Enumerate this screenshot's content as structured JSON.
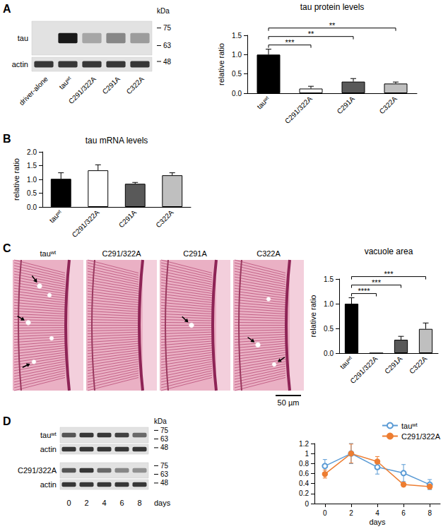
{
  "chart_data": [
    {
      "type": "blot",
      "panel": "A",
      "unit": "kDa",
      "markers": [
        75,
        63,
        48
      ],
      "blocks": [
        [
          "tau",
          "actin"
        ]
      ],
      "lanes": [
        "driver-alone",
        "tauʷᵗ",
        "C291/322A",
        "C291A",
        "C322A"
      ]
    },
    {
      "type": "bar",
      "title": "tau protein levels",
      "y_label": "relative ratio",
      "categories": [
        "tauʷᵗ",
        "C291/322A",
        "C291A",
        "C322A"
      ],
      "values": [
        1.0,
        0.12,
        0.3,
        0.25
      ],
      "errors": [
        0.14,
        0.06,
        0.08,
        0.04
      ],
      "colors": [
        "#000000",
        "#ffffff",
        "#595959",
        "#bfbfbf"
      ],
      "ylim": [
        0,
        1.5
      ],
      "yticks": [
        {
          "value": 0,
          "label": "0.0"
        },
        {
          "value": 0.5,
          "label": "0.5"
        },
        {
          "value": 1,
          "label": "1.0"
        },
        {
          "value": 1.5,
          "label": "1.5"
        }
      ],
      "significance": [
        {
          "from": "tauʷᵗ",
          "to": "C291/322A",
          "label": "***"
        },
        {
          "from": "tauʷᵗ",
          "to": "C291A",
          "label": "**"
        },
        {
          "from": "tauʷᵗ",
          "to": "C322A",
          "label": "**"
        }
      ]
    },
    {
      "type": "bar",
      "panel": "B",
      "title": "tau mRNA levels",
      "y_label": "relative ratio",
      "categories": [
        "tauʷᵗ",
        "C291/322A",
        "C291A",
        "C322A"
      ],
      "values": [
        1.02,
        1.33,
        0.84,
        1.15
      ],
      "errors": [
        0.22,
        0.2,
        0.05,
        0.09
      ],
      "colors": [
        "#000000",
        "#ffffff",
        "#595959",
        "#bfbfbf"
      ],
      "ylim": [
        0,
        2
      ],
      "yticks": [
        {
          "value": 0,
          "label": "0.0"
        },
        {
          "value": 0.5,
          "label": "0.5"
        },
        {
          "value": 1,
          "label": "1.0"
        },
        {
          "value": 1.5,
          "label": "1.5"
        },
        {
          "value": 2,
          "label": "2.0"
        }
      ],
      "significance": []
    },
    {
      "type": "histology",
      "panel": "C",
      "images": [
        "tauʷᵗ",
        "C291/322A",
        "C291A",
        "C322A"
      ],
      "scale_bar": "50 µm"
    },
    {
      "type": "bar",
      "title": "vacuole area",
      "y_label": "relative ratio",
      "categories": [
        "tauʷᵗ",
        "C291/322A",
        "C291A",
        "C322A"
      ],
      "values": [
        1.0,
        0.0,
        0.27,
        0.49
      ],
      "errors": [
        0.12,
        0.0,
        0.07,
        0.12
      ],
      "colors": [
        "#000000",
        "#ffffff",
        "#595959",
        "#bfbfbf"
      ],
      "ylim": [
        0,
        1.5
      ],
      "yticks": [
        {
          "value": 0,
          "label": "0.0"
        },
        {
          "value": 0.5,
          "label": "0.5"
        },
        {
          "value": 1,
          "label": "1.0"
        },
        {
          "value": 1.5,
          "label": "1.5"
        }
      ],
      "significance": [
        {
          "from": "tauʷᵗ",
          "to": "C291/322A",
          "label": "****"
        },
        {
          "from": "tauʷᵗ",
          "to": "C291A",
          "label": "***"
        },
        {
          "from": "tauʷᵗ",
          "to": "C322A",
          "label": "***"
        }
      ]
    },
    {
      "type": "blot",
      "panel": "D",
      "unit": "kDa",
      "markers": [
        75,
        63,
        48
      ],
      "blocks": [
        [
          "tauʷᵗ",
          "actin"
        ],
        [
          "C291/322A",
          "actin"
        ]
      ],
      "lanes": [
        0,
        2,
        4,
        6,
        8
      ],
      "lane_label": "days"
    },
    {
      "type": "line",
      "x_label": "days",
      "x": [
        0,
        2,
        4,
        6,
        8
      ],
      "xlim": [
        -0.8,
        8.8
      ],
      "xticks": [
        0,
        2,
        4,
        6,
        8
      ],
      "ylim": [
        0,
        1.2
      ],
      "yticks": [
        0,
        0.2,
        0.4,
        0.6,
        0.8,
        1,
        1.2
      ],
      "legend": "upper right",
      "series": [
        {
          "name": "tauʷᵗ",
          "color": "#5b9bd5",
          "marker": "hollow_circle",
          "line_style": "solid",
          "values": [
            0.75,
            1.0,
            0.73,
            0.61,
            0.38
          ],
          "errors": [
            0.13,
            0.2,
            0.14,
            0.17,
            0.1
          ]
        },
        {
          "name": "C291/322A",
          "color": "#ed7d31",
          "marker": "circle",
          "line_style": "solid",
          "values": [
            0.59,
            1.0,
            0.84,
            0.38,
            0.34
          ],
          "errors": [
            0.08,
            0.19,
            0.1,
            0.04,
            0.05
          ]
        }
      ]
    }
  ]
}
